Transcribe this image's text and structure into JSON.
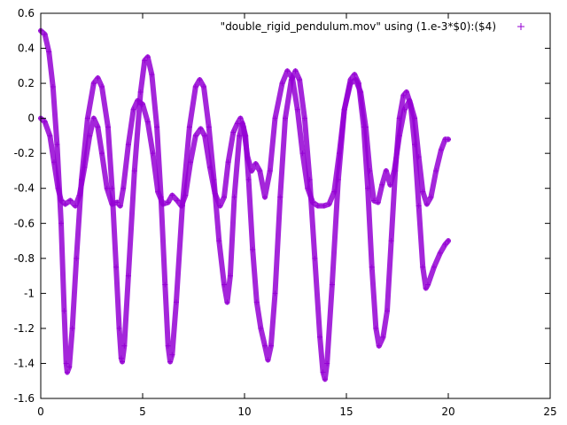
{
  "chart_data": {
    "type": "scatter",
    "title": "",
    "xlabel": "",
    "ylabel": "",
    "xlim": [
      0,
      25
    ],
    "ylim": [
      -1.6,
      0.6
    ],
    "x_ticks": [
      0,
      5,
      10,
      15,
      20,
      25
    ],
    "x_tick_labels": [
      "0",
      "5",
      "10",
      "15",
      "20",
      "25"
    ],
    "y_ticks": [
      -1.6,
      -1.4,
      -1.2,
      -1,
      -0.8,
      -0.6,
      -0.4,
      -0.2,
      0,
      0.2,
      0.4,
      0.6
    ],
    "y_tick_labels": [
      "-1.6",
      "-1.4",
      "-1.2",
      "-1",
      "-0.8",
      "-0.6",
      "-0.4",
      "-0.2",
      "0",
      "0.2",
      "0.4",
      "0.6"
    ],
    "grid": false,
    "legend_position": "top-right",
    "marker": "+",
    "color": "#9400d3",
    "series": [
      {
        "name": "\"double_rigid_pendulum.mov\" using (1.e-3*$0):($4)",
        "points": [
          [
            0.0,
            0.5
          ],
          [
            0.2,
            0.48
          ],
          [
            0.4,
            0.38
          ],
          [
            0.6,
            0.18
          ],
          [
            0.8,
            -0.15
          ],
          [
            1.0,
            -0.6
          ],
          [
            1.15,
            -1.1
          ],
          [
            1.25,
            -1.4
          ],
          [
            1.3,
            -1.45
          ],
          [
            1.4,
            -1.42
          ],
          [
            1.55,
            -1.2
          ],
          [
            1.75,
            -0.8
          ],
          [
            2.0,
            -0.35
          ],
          [
            2.3,
            0.0
          ],
          [
            2.6,
            0.2
          ],
          [
            2.8,
            0.23
          ],
          [
            3.0,
            0.18
          ],
          [
            3.3,
            -0.05
          ],
          [
            3.5,
            -0.4
          ],
          [
            3.7,
            -0.85
          ],
          [
            3.85,
            -1.2
          ],
          [
            3.95,
            -1.37
          ],
          [
            4.0,
            -1.39
          ],
          [
            4.1,
            -1.3
          ],
          [
            4.3,
            -0.9
          ],
          [
            4.6,
            -0.3
          ],
          [
            4.9,
            0.15
          ],
          [
            5.1,
            0.33
          ],
          [
            5.25,
            0.35
          ],
          [
            5.45,
            0.25
          ],
          [
            5.7,
            -0.05
          ],
          [
            5.9,
            -0.45
          ],
          [
            6.1,
            -0.95
          ],
          [
            6.25,
            -1.3
          ],
          [
            6.35,
            -1.39
          ],
          [
            6.45,
            -1.35
          ],
          [
            6.65,
            -1.05
          ],
          [
            6.95,
            -0.5
          ],
          [
            7.3,
            -0.05
          ],
          [
            7.6,
            0.18
          ],
          [
            7.8,
            0.22
          ],
          [
            8.0,
            0.18
          ],
          [
            8.25,
            -0.05
          ],
          [
            8.5,
            -0.35
          ],
          [
            8.75,
            -0.7
          ],
          [
            9.0,
            -0.95
          ],
          [
            9.15,
            -1.05
          ],
          [
            9.3,
            -0.9
          ],
          [
            9.5,
            -0.45
          ],
          [
            9.75,
            -0.1
          ],
          [
            9.9,
            -0.03
          ],
          [
            10.05,
            -0.1
          ],
          [
            10.2,
            -0.35
          ],
          [
            10.4,
            -0.75
          ],
          [
            10.6,
            -1.05
          ],
          [
            10.8,
            -1.2
          ],
          [
            11.0,
            -1.3
          ],
          [
            11.15,
            -1.38
          ],
          [
            11.3,
            -1.3
          ],
          [
            11.5,
            -1.0
          ],
          [
            11.75,
            -0.45
          ],
          [
            12.0,
            0.0
          ],
          [
            12.3,
            0.22
          ],
          [
            12.5,
            0.27
          ],
          [
            12.7,
            0.22
          ],
          [
            12.95,
            0.0
          ],
          [
            13.2,
            -0.35
          ],
          [
            13.45,
            -0.8
          ],
          [
            13.7,
            -1.25
          ],
          [
            13.85,
            -1.45
          ],
          [
            13.95,
            -1.49
          ],
          [
            14.05,
            -1.4
          ],
          [
            14.3,
            -0.95
          ],
          [
            14.6,
            -0.35
          ],
          [
            14.9,
            0.05
          ],
          [
            15.2,
            0.22
          ],
          [
            15.4,
            0.25
          ],
          [
            15.6,
            0.2
          ],
          [
            15.85,
            -0.05
          ],
          [
            16.05,
            -0.4
          ],
          [
            16.25,
            -0.85
          ],
          [
            16.45,
            -1.2
          ],
          [
            16.6,
            -1.3
          ],
          [
            16.8,
            -1.25
          ],
          [
            17.0,
            -1.1
          ],
          [
            17.2,
            -0.7
          ],
          [
            17.4,
            -0.3
          ],
          [
            17.6,
            0.0
          ],
          [
            17.8,
            0.13
          ],
          [
            17.95,
            0.15
          ],
          [
            18.15,
            0.08
          ],
          [
            18.35,
            -0.15
          ],
          [
            18.55,
            -0.5
          ],
          [
            18.75,
            -0.85
          ],
          [
            18.9,
            -0.97
          ],
          [
            19.0,
            -0.95
          ],
          [
            19.3,
            -0.85
          ],
          [
            19.6,
            -0.77
          ],
          [
            19.85,
            -0.72
          ],
          [
            20.0,
            -0.7
          ]
        ]
      },
      {
        "name": "",
        "points": [
          [
            0.0,
            0.0
          ],
          [
            0.2,
            -0.02
          ],
          [
            0.45,
            -0.1
          ],
          [
            0.65,
            -0.25
          ],
          [
            0.85,
            -0.4
          ],
          [
            1.0,
            -0.47
          ],
          [
            1.2,
            -0.49
          ],
          [
            1.45,
            -0.47
          ],
          [
            1.7,
            -0.5
          ],
          [
            1.9,
            -0.44
          ],
          [
            2.15,
            -0.28
          ],
          [
            2.4,
            -0.1
          ],
          [
            2.6,
            0.0
          ],
          [
            2.8,
            -0.05
          ],
          [
            3.0,
            -0.2
          ],
          [
            3.25,
            -0.4
          ],
          [
            3.5,
            -0.49
          ],
          [
            3.75,
            -0.48
          ],
          [
            3.9,
            -0.5
          ],
          [
            4.05,
            -0.4
          ],
          [
            4.3,
            -0.15
          ],
          [
            4.55,
            0.05
          ],
          [
            4.75,
            0.1
          ],
          [
            5.0,
            0.08
          ],
          [
            5.25,
            -0.02
          ],
          [
            5.5,
            -0.2
          ],
          [
            5.75,
            -0.42
          ],
          [
            6.0,
            -0.49
          ],
          [
            6.25,
            -0.48
          ],
          [
            6.45,
            -0.44
          ],
          [
            6.7,
            -0.47
          ],
          [
            6.9,
            -0.5
          ],
          [
            7.1,
            -0.44
          ],
          [
            7.35,
            -0.25
          ],
          [
            7.6,
            -0.1
          ],
          [
            7.85,
            -0.06
          ],
          [
            8.05,
            -0.1
          ],
          [
            8.3,
            -0.28
          ],
          [
            8.55,
            -0.43
          ],
          [
            8.8,
            -0.5
          ],
          [
            9.0,
            -0.45
          ],
          [
            9.2,
            -0.25
          ],
          [
            9.45,
            -0.08
          ],
          [
            9.65,
            -0.03
          ],
          [
            9.8,
            0.0
          ],
          [
            9.95,
            -0.05
          ],
          [
            10.15,
            -0.22
          ],
          [
            10.35,
            -0.3
          ],
          [
            10.55,
            -0.26
          ],
          [
            10.75,
            -0.3
          ],
          [
            11.0,
            -0.45
          ],
          [
            11.25,
            -0.3
          ],
          [
            11.5,
            0.0
          ],
          [
            11.85,
            0.2
          ],
          [
            12.1,
            0.27
          ],
          [
            12.35,
            0.23
          ],
          [
            12.6,
            0.05
          ],
          [
            12.85,
            -0.2
          ],
          [
            13.1,
            -0.4
          ],
          [
            13.35,
            -0.48
          ],
          [
            13.6,
            -0.5
          ],
          [
            13.9,
            -0.5
          ],
          [
            14.15,
            -0.49
          ],
          [
            14.4,
            -0.42
          ],
          [
            14.65,
            -0.2
          ],
          [
            14.9,
            0.05
          ],
          [
            15.2,
            0.2
          ],
          [
            15.45,
            0.22
          ],
          [
            15.7,
            0.15
          ],
          [
            15.95,
            -0.05
          ],
          [
            16.15,
            -0.3
          ],
          [
            16.35,
            -0.47
          ],
          [
            16.55,
            -0.48
          ],
          [
            16.75,
            -0.38
          ],
          [
            16.95,
            -0.3
          ],
          [
            17.15,
            -0.38
          ],
          [
            17.35,
            -0.3
          ],
          [
            17.6,
            -0.1
          ],
          [
            17.85,
            0.05
          ],
          [
            18.1,
            0.1
          ],
          [
            18.35,
            0.0
          ],
          [
            18.55,
            -0.22
          ],
          [
            18.75,
            -0.42
          ],
          [
            18.95,
            -0.49
          ],
          [
            19.15,
            -0.45
          ],
          [
            19.4,
            -0.3
          ],
          [
            19.65,
            -0.18
          ],
          [
            19.85,
            -0.12
          ],
          [
            20.0,
            -0.12
          ]
        ]
      }
    ]
  }
}
